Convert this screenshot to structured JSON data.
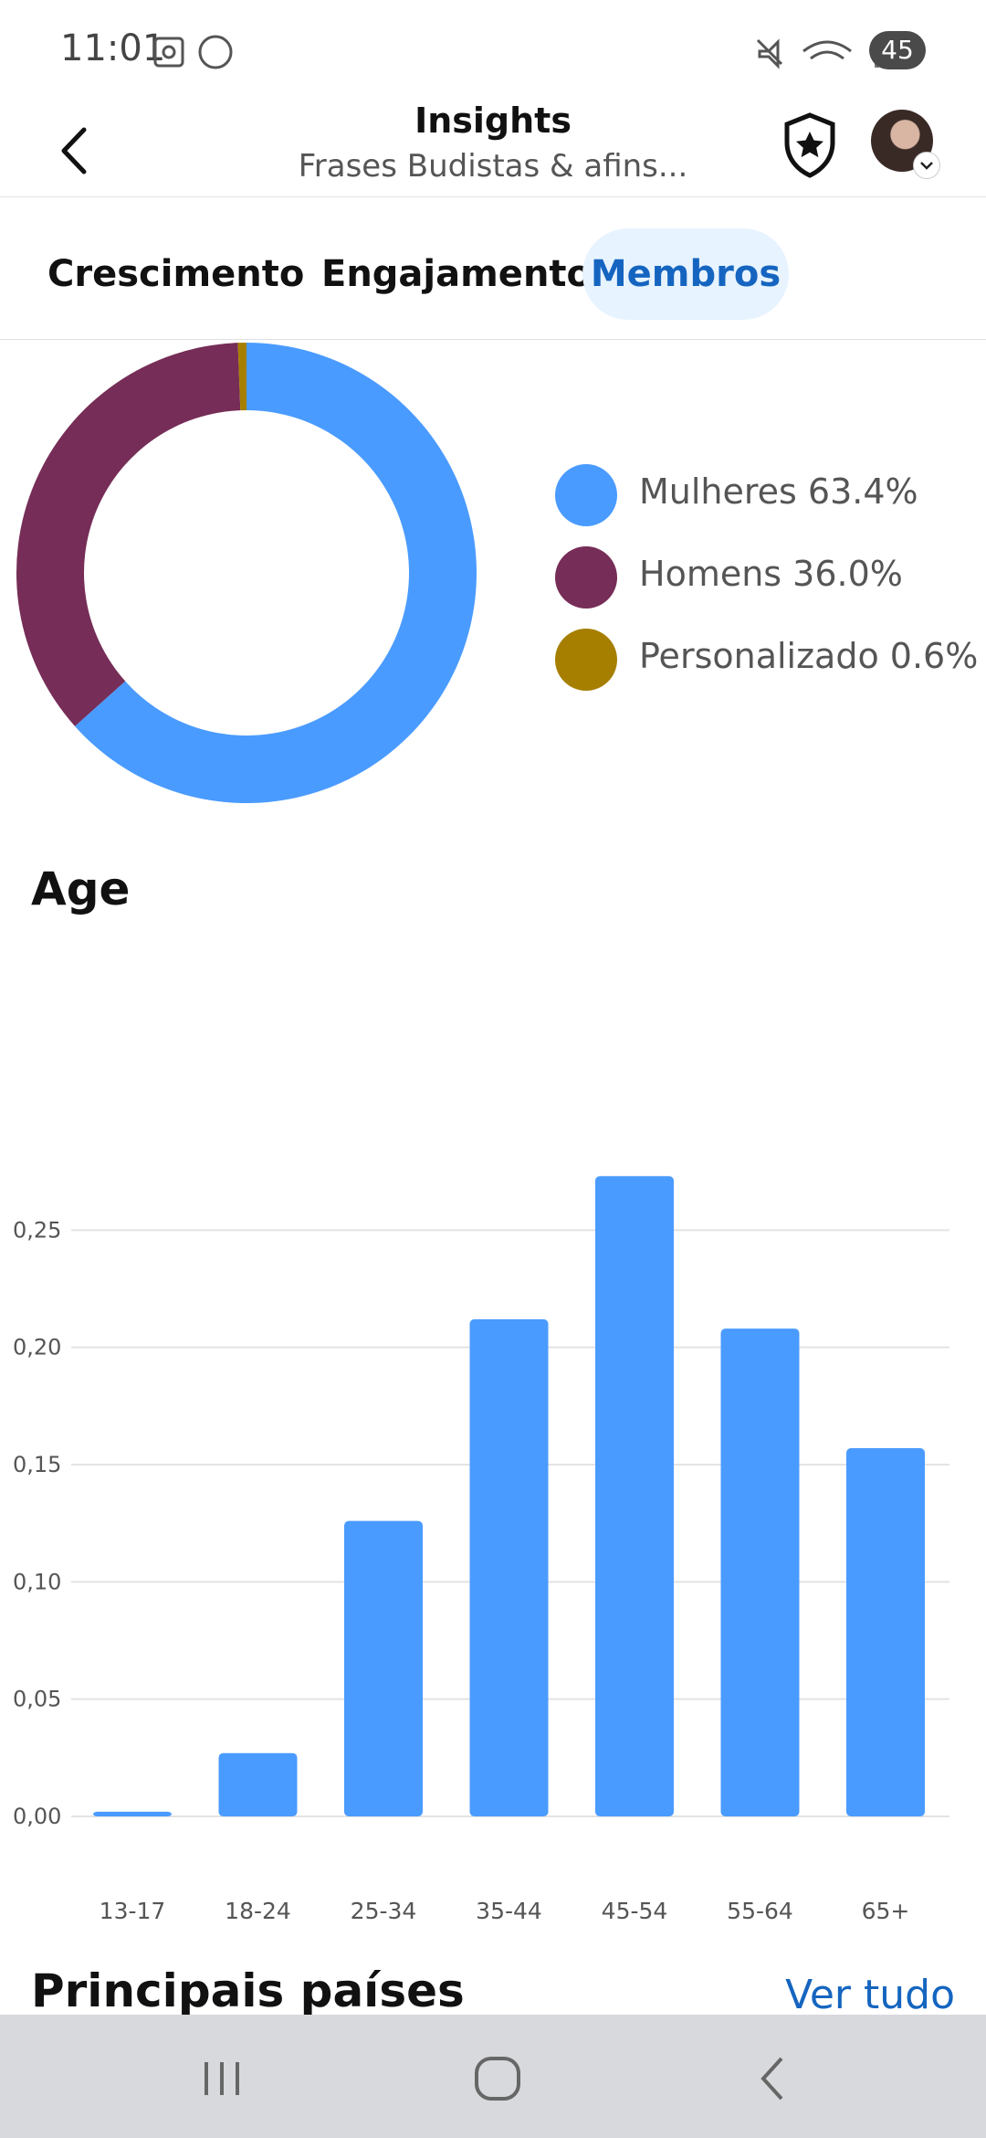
{
  "status_bar": {
    "time": "11:01",
    "battery": "45"
  },
  "header": {
    "title": "Insights",
    "subtitle": "Frases Budistas & afins..."
  },
  "tabs": [
    {
      "label": "Crescimento",
      "active": false
    },
    {
      "label": "Engajamento",
      "active": false
    },
    {
      "label": "Membros",
      "active": true
    }
  ],
  "gender": {
    "legend": [
      {
        "label": "Mulheres 63.4%",
        "value": 63.4,
        "color": "#4a9bff"
      },
      {
        "label": "Homens 36.0%",
        "value": 36.0,
        "color": "#762d57"
      },
      {
        "label": "Personalizado 0.6%",
        "value": 0.6,
        "color": "#a67f00"
      }
    ]
  },
  "age_section": {
    "title": "Age"
  },
  "chart_data": [
    {
      "type": "pie",
      "labels": [
        "Mulheres 63.4%",
        "Homens 36.0%",
        "Personalizado 0.6%"
      ],
      "values": [
        63.4,
        36.0,
        0.6
      ],
      "colors": [
        "#4a9bff",
        "#762d57",
        "#a67f00"
      ],
      "legend": "right"
    },
    {
      "type": "bar",
      "title": "Age",
      "categories": [
        "13-17",
        "18-24",
        "25-34",
        "35-44",
        "45-54",
        "55-64",
        "65+"
      ],
      "values": [
        0.002,
        0.027,
        0.126,
        0.212,
        0.273,
        0.208,
        0.157
      ],
      "yticks": [
        "0,00",
        "0,05",
        "0,10",
        "0,15",
        "0,20",
        "0,25"
      ],
      "ylim": [
        0,
        0.3
      ],
      "grid": true,
      "color": "#4a9bff"
    }
  ],
  "countries": {
    "title": "Principais países",
    "see_all": "Ver tudo"
  },
  "icons": {
    "back": "back-arrow-icon",
    "shield": "shield-star-icon",
    "nav": [
      "recent-apps-icon",
      "home-icon",
      "nav-back-icon"
    ]
  }
}
